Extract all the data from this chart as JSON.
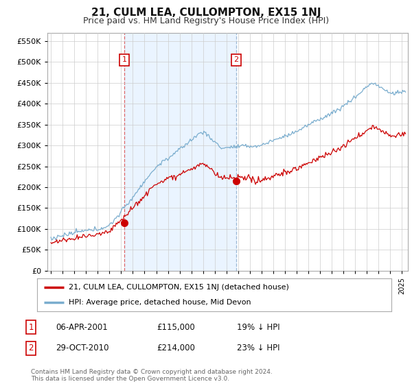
{
  "title": "21, CULM LEA, CULLOMPTON, EX15 1NJ",
  "subtitle": "Price paid vs. HM Land Registry's House Price Index (HPI)",
  "ytick_values": [
    0,
    50000,
    100000,
    150000,
    200000,
    250000,
    300000,
    350000,
    400000,
    450000,
    500000,
    550000
  ],
  "ylim": [
    0,
    570000
  ],
  "xlim_start": 1994.7,
  "xlim_end": 2025.5,
  "sale1": {
    "date_num": 2001.27,
    "price": 115000,
    "label": "1"
  },
  "sale2": {
    "date_num": 2010.83,
    "price": 214000,
    "label": "2"
  },
  "legend_line1": "21, CULM LEA, CULLOMPTON, EX15 1NJ (detached house)",
  "legend_line2": "HPI: Average price, detached house, Mid Devon",
  "footnote": "Contains HM Land Registry data © Crown copyright and database right 2024.\nThis data is licensed under the Open Government Licence v3.0.",
  "line_color_red": "#cc0000",
  "line_color_blue": "#7aadce",
  "shade_color": "#ddeeff",
  "background_color": "#ffffff",
  "grid_color": "#cccccc",
  "sale1_vline_color": "#dd4444",
  "sale2_vline_color": "#88aacc"
}
